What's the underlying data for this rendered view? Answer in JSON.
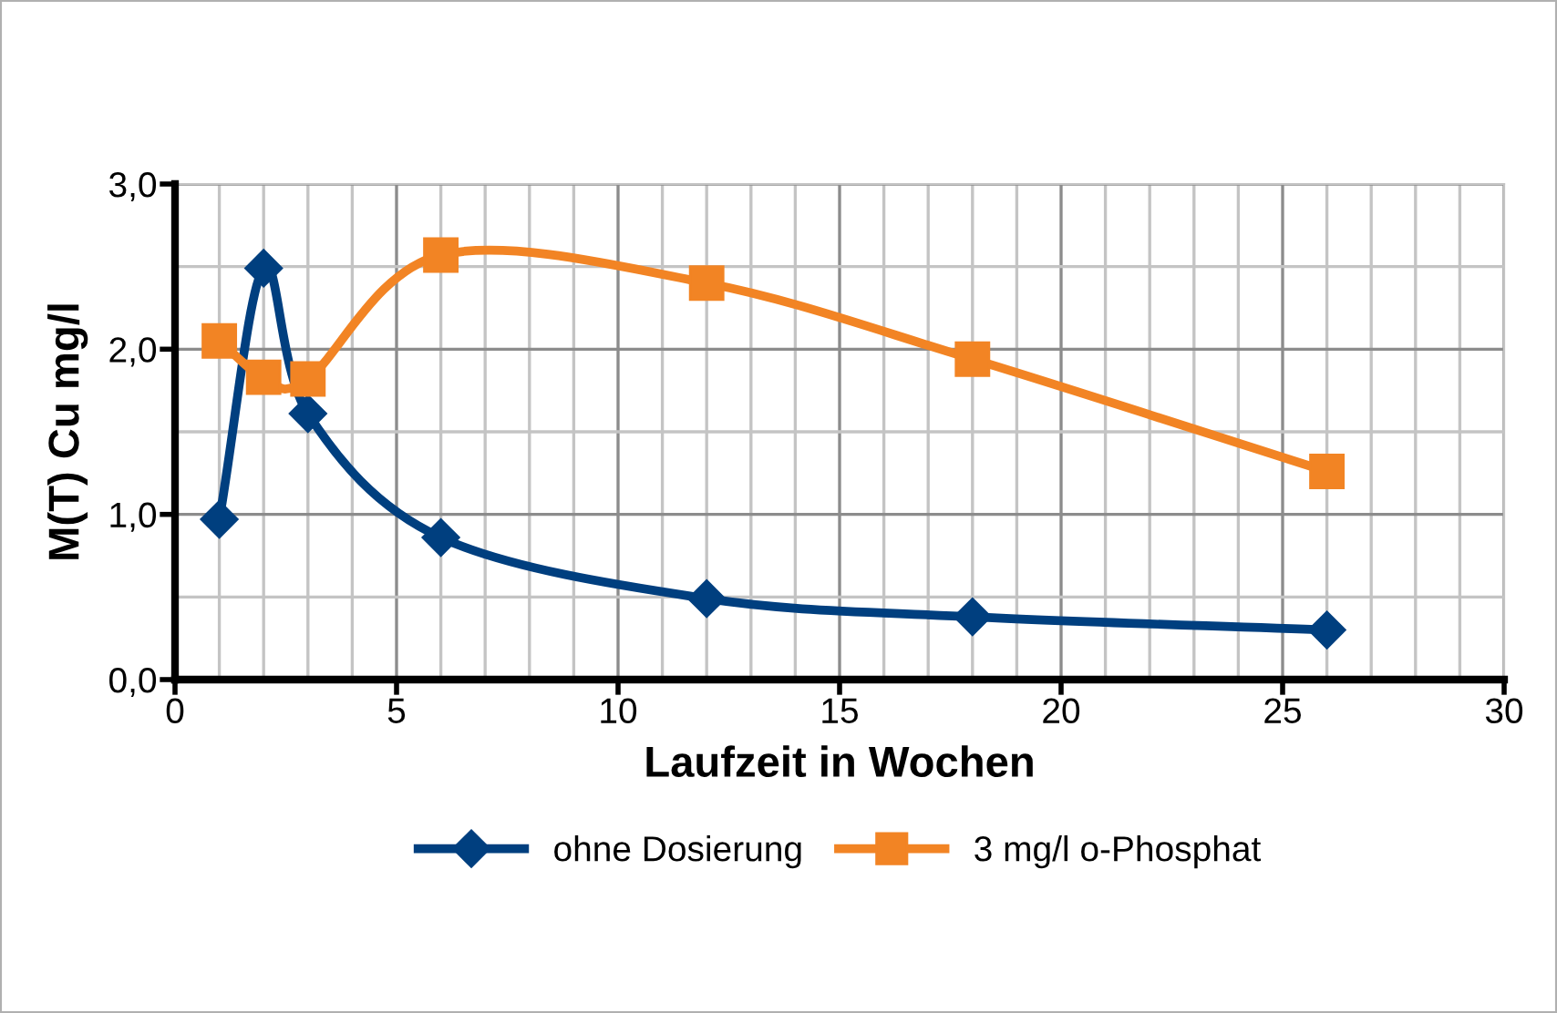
{
  "chart_data": {
    "type": "line",
    "xlabel": "Laufzeit in Wochen",
    "ylabel": "M(T) Cu mg/l",
    "xlim": [
      0,
      30
    ],
    "ylim": [
      0,
      3
    ],
    "xticks": [
      0,
      {
        "value": 1,
        "label": null
      },
      {
        "value": 2,
        "label": null
      },
      {
        "value": 3,
        "label": null
      },
      {
        "value": 4,
        "label": null
      },
      5,
      {
        "value": 6,
        "label": null
      },
      {
        "value": 7,
        "label": null
      },
      {
        "value": 8,
        "label": null
      },
      {
        "value": 9,
        "label": null
      },
      10,
      {
        "value": 11,
        "label": null
      },
      {
        "value": 12,
        "label": null
      },
      {
        "value": 13,
        "label": null
      },
      {
        "value": 14,
        "label": null
      },
      15,
      {
        "value": 16,
        "label": null
      },
      {
        "value": 17,
        "label": null
      },
      {
        "value": 18,
        "label": null
      },
      {
        "value": 19,
        "label": null
      },
      20,
      {
        "value": 21,
        "label": null
      },
      {
        "value": 22,
        "label": null
      },
      {
        "value": 23,
        "label": null
      },
      {
        "value": 24,
        "label": null
      },
      25,
      {
        "value": 26,
        "label": null
      },
      {
        "value": 27,
        "label": null
      },
      {
        "value": 28,
        "label": null
      },
      {
        "value": 29,
        "label": null
      },
      30
    ],
    "yticks": [
      {
        "value": 0,
        "label": "0,0"
      },
      {
        "value": 0.5,
        "label": null
      },
      {
        "value": 1,
        "label": "1,0"
      },
      {
        "value": 1.5,
        "label": null
      },
      {
        "value": 2,
        "label": "2,0"
      },
      {
        "value": 2.5,
        "label": null
      },
      {
        "value": 3,
        "label": "3,0"
      }
    ],
    "grid": true,
    "legend": "bottom",
    "line_style": "solid",
    "x": [
      1,
      2,
      3,
      6,
      12,
      18,
      26
    ],
    "series": [
      {
        "name": "ohne Dosierung",
        "color": "#003f7f",
        "marker": "diamond",
        "values": [
          0.97,
          2.49,
          1.61,
          0.86,
          0.49,
          0.38,
          0.3
        ]
      },
      {
        "name": "3 mg/l o-Phosphat",
        "color": "#f28424",
        "marker": "square",
        "values": [
          2.05,
          1.83,
          1.82,
          2.57,
          2.4,
          1.94,
          1.26
        ]
      }
    ]
  }
}
